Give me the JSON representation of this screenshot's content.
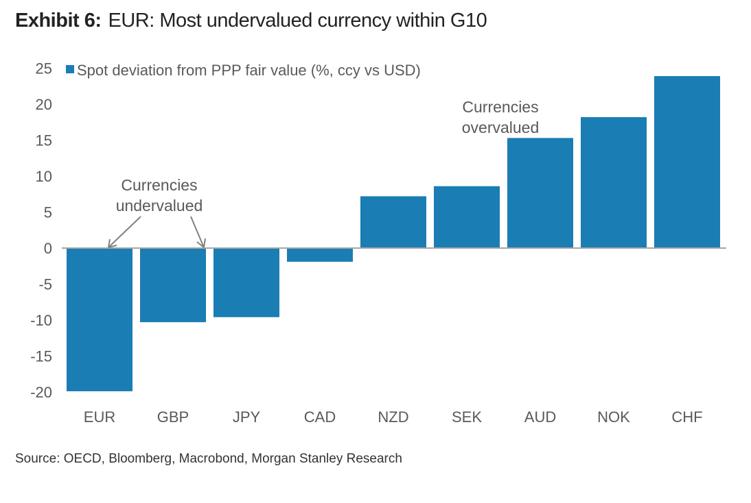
{
  "title_prefix": "Exhibit 6:",
  "title": "EUR: Most undervalued currency within G10",
  "source": "Source: OECD, Bloomberg, Macrobond, Morgan Stanley Research",
  "chart_data": {
    "type": "bar",
    "categories": [
      "EUR",
      "GBP",
      "JPY",
      "CAD",
      "NZD",
      "SEK",
      "AUD",
      "NOK",
      "CHF"
    ],
    "series": [
      {
        "name": "Spot deviation from PPP fair value (%, ccy vs USD)",
        "values": [
          -19.9,
          -10.3,
          -9.6,
          -1.9,
          7.2,
          8.6,
          15.3,
          18.2,
          23.9
        ],
        "color": "#1A7DB4"
      }
    ],
    "ylim": [
      -20,
      25
    ],
    "yticks": [
      25,
      20,
      15,
      10,
      5,
      0,
      -5,
      -10,
      -15,
      -20
    ],
    "legend": "top-left",
    "grid": false,
    "annotations": [
      {
        "lines": [
          "Currencies",
          "undervalued"
        ]
      },
      {
        "lines": [
          "Currencies",
          "overvalued"
        ]
      }
    ]
  }
}
